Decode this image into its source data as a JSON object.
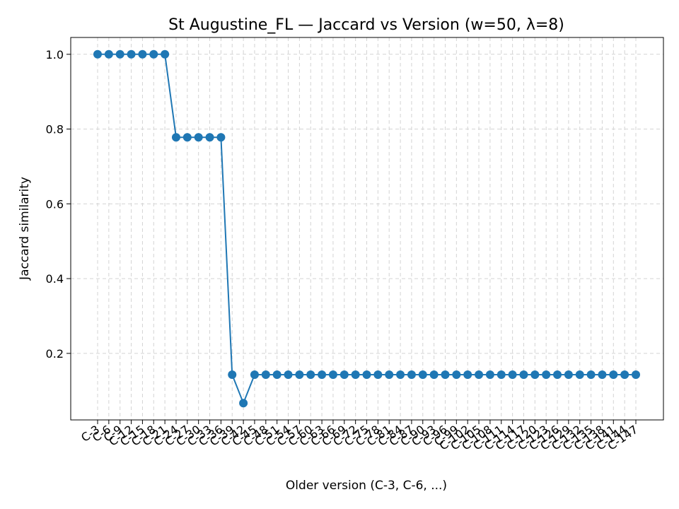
{
  "chart_data": {
    "type": "line",
    "title": "St Augustine_FL — Jaccard vs Version (w=50, λ=8)",
    "xlabel": "Older version (C-3, C-6, ...)",
    "ylabel": "Jaccard similarity",
    "categories": [
      "C-3",
      "C-6",
      "C-9",
      "C-12",
      "C-15",
      "C-18",
      "C-21",
      "C-24",
      "C-27",
      "C-30",
      "C-33",
      "C-36",
      "C-39",
      "C-42",
      "C-45",
      "C-48",
      "C-51",
      "C-54",
      "C-57",
      "C-60",
      "C-63",
      "C-66",
      "C-69",
      "C-72",
      "C-75",
      "C-78",
      "C-81",
      "C-84",
      "C-87",
      "C-90",
      "C-93",
      "C-96",
      "C-99",
      "C-102",
      "C-105",
      "C-108",
      "C-111",
      "C-114",
      "C-117",
      "C-120",
      "C-123",
      "C-126",
      "C-129",
      "C-132",
      "C-135",
      "C-138",
      "C-141",
      "C-144",
      "C-147"
    ],
    "series": [
      {
        "color": "#1f77b4",
        "values": [
          1.0,
          1.0,
          1.0,
          1.0,
          1.0,
          1.0,
          1.0,
          0.778,
          0.778,
          0.778,
          0.778,
          0.778,
          0.143,
          0.067,
          0.143,
          0.143,
          0.143,
          0.143,
          0.143,
          0.143,
          0.143,
          0.143,
          0.143,
          0.143,
          0.143,
          0.143,
          0.143,
          0.143,
          0.143,
          0.143,
          0.143,
          0.143,
          0.143,
          0.143,
          0.143,
          0.143,
          0.143,
          0.143,
          0.143,
          0.143,
          0.143,
          0.143,
          0.143,
          0.143,
          0.143,
          0.143,
          0.143,
          0.143,
          0.143
        ]
      }
    ],
    "yticks": [
      "0.2",
      "0.4",
      "0.6",
      "0.8",
      "1.0"
    ],
    "ylim": [
      0.022,
      1.045
    ],
    "grid": true,
    "legend": "none"
  }
}
